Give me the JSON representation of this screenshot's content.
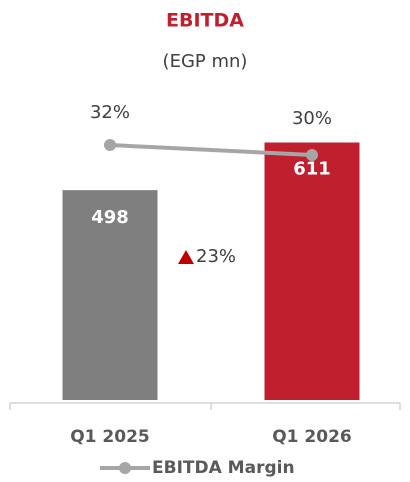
{
  "chart_data": {
    "type": "bar_line",
    "title": "EBITDA",
    "subtitle": "(EGP mn)",
    "categories": [
      "Q1 2025",
      "Q1 2026"
    ],
    "ylim": [
      0,
      700
    ],
    "y2lim": [
      -19,
      40
    ],
    "series": [
      {
        "name": "EBITDA",
        "type": "bar",
        "colors": [
          "#7f7f7f",
          "#c0202e"
        ],
        "values": [
          498,
          611
        ]
      },
      {
        "name": "EBITDA Margin",
        "type": "line",
        "axis": "y2",
        "color": "#a6a6a6",
        "values": [
          32,
          30
        ],
        "value_labels": [
          "32%",
          "30%"
        ]
      }
    ],
    "annotations": [
      {
        "text": "23%",
        "color": "#c00000"
      }
    ],
    "legend": "bottom"
  }
}
